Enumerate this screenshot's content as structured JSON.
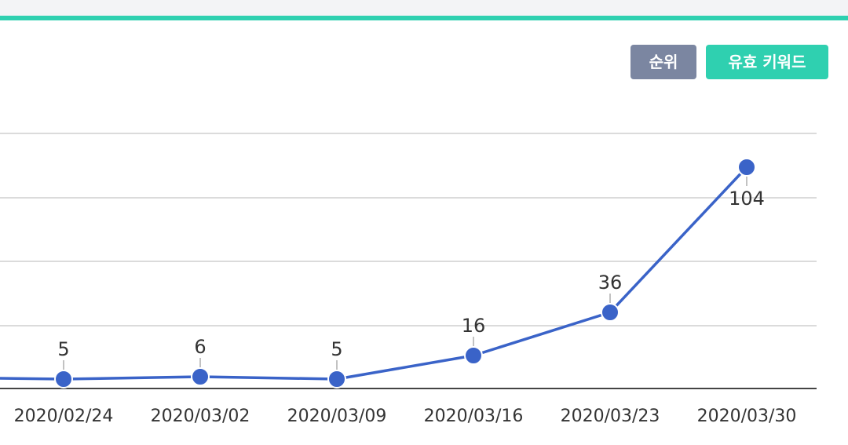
{
  "toolbar": {
    "rank_label": "순위",
    "keyword_label": "유효 키워드"
  },
  "colors": {
    "accent": "#2fd0b0",
    "rank_button": "#7b86a1",
    "series": "#3a63c8"
  },
  "chart_data": {
    "type": "line",
    "title": "",
    "xlabel": "",
    "ylabel": "",
    "categories": [
      "2020/02/24",
      "2020/03/02",
      "2020/03/09",
      "2020/03/16",
      "2020/03/23",
      "2020/03/30"
    ],
    "series": [
      {
        "values": [
          5,
          6,
          5,
          16,
          36,
          104
        ]
      }
    ],
    "ylim": [
      0,
      125
    ],
    "grid": true,
    "legend": "none",
    "extends_left_of_view": true
  }
}
